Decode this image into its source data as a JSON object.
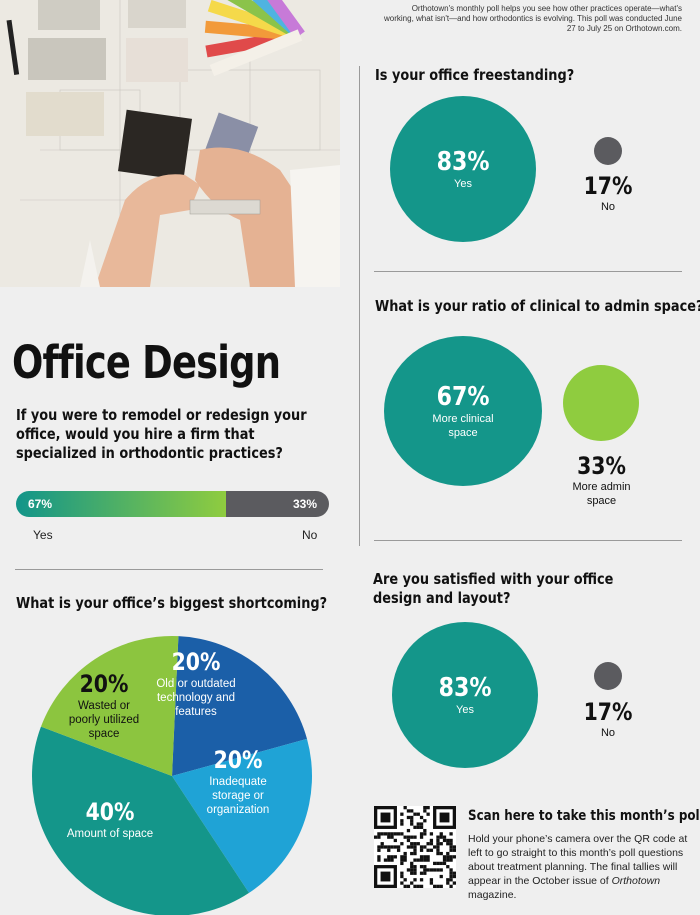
{
  "intro_text": "Orthotown's monthly poll helps you see how other practices operate—what's working, what isn't—and how orthodontics is evolving. This poll was conducted June 27 to July 25 on Orthotown.com.",
  "page_title": "Office Design",
  "colors": {
    "teal": "#14968a",
    "green": "#8fcc3f",
    "dark": "#5b5b5f",
    "blue": "#1b5fa8",
    "lightblue": "#1fa3d6",
    "lime": "#8cc53f"
  },
  "q_remodel": {
    "question": "If you were to remodel or redesign your office, would you hire a firm that specialized in orthodontic practices?",
    "yes_pct": "67%",
    "no_pct": "33%",
    "yes_label": "Yes",
    "no_label": "No"
  },
  "q_shortcoming": {
    "question": "What is your office’s biggest shortcoming?"
  },
  "q_freestanding": {
    "question": "Is your office freestanding?",
    "yes_pct": "83%",
    "yes_label": "Yes",
    "no_pct": "17%",
    "no_label": "No"
  },
  "q_ratio": {
    "question": "What is your ratio of clinical to admin space?",
    "clinical_pct": "67%",
    "clinical_label": "More clinical space",
    "admin_pct": "33%",
    "admin_label": "More admin space"
  },
  "q_satisfied": {
    "question": "Are you satisfied with your office design and layout?",
    "yes_pct": "83%",
    "yes_label": "Yes",
    "no_pct": "17%",
    "no_label": "No"
  },
  "qr": {
    "heading": "Scan here to take this month’s poll!",
    "body_prefix": "Hold your phone’s camera over the QR code at left to go straight to this month’s poll questions about treatment planning. The final tallies will appear in the October issue of ",
    "body_magazine": "Orthotown",
    "body_suffix": " magazine."
  },
  "chart_data": [
    {
      "type": "bar",
      "title": "If you were to remodel or redesign your office, would you hire a firm that specialized in orthodontic practices?",
      "categories": [
        "Yes",
        "No"
      ],
      "values": [
        67,
        33
      ]
    },
    {
      "type": "pie",
      "title": "What is your office’s biggest shortcoming?",
      "slices": [
        {
          "label": "Old or outdated technology and features",
          "value": 20,
          "color": "#1b5fa8"
        },
        {
          "label": "Inadequate storage or organization",
          "value": 20,
          "color": "#1fa3d6"
        },
        {
          "label": "Amount of space",
          "value": 40,
          "color": "#14968a"
        },
        {
          "label": "Wasted or poorly utilized space",
          "value": 20,
          "color": "#8cc53f"
        }
      ]
    },
    {
      "type": "pie",
      "title": "Is your office freestanding?",
      "categories": [
        "Yes",
        "No"
      ],
      "values": [
        83,
        17
      ]
    },
    {
      "type": "pie",
      "title": "What is your ratio of clinical to admin space?",
      "categories": [
        "More clinical space",
        "More admin space"
      ],
      "values": [
        67,
        33
      ]
    },
    {
      "type": "pie",
      "title": "Are you satisfied with your office design and layout?",
      "categories": [
        "Yes",
        "No"
      ],
      "values": [
        83,
        17
      ]
    }
  ]
}
